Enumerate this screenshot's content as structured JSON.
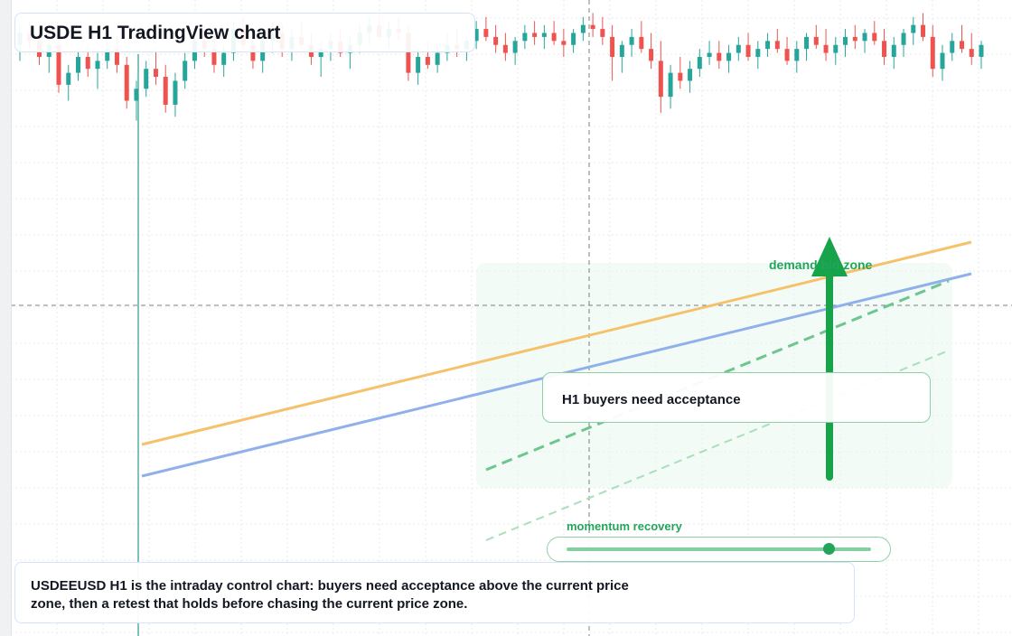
{
  "title": "USDE H1 TradingView chart",
  "chart_data": {
    "type": "candlestick",
    "timeframe": "H1",
    "grid": true,
    "crosshair": true,
    "candles_ohlc": [
      [
        100.3,
        100.8,
        99.9,
        100.6
      ],
      [
        100.6,
        100.9,
        100.2,
        100.4
      ],
      [
        100.4,
        100.7,
        99.8,
        100.0
      ],
      [
        100.0,
        100.5,
        99.6,
        100.3
      ],
      [
        100.3,
        100.6,
        99.1,
        99.3
      ],
      [
        99.3,
        99.8,
        98.9,
        99.6
      ],
      [
        99.6,
        100.2,
        99.4,
        100.0
      ],
      [
        100.0,
        100.3,
        99.5,
        99.7
      ],
      [
        99.7,
        100.1,
        99.2,
        99.9
      ],
      [
        99.9,
        100.4,
        99.7,
        100.2
      ],
      [
        100.2,
        100.5,
        99.6,
        99.8
      ],
      [
        99.8,
        100.0,
        98.7,
        98.9
      ],
      [
        98.9,
        99.4,
        98.4,
        99.2
      ],
      [
        99.2,
        99.9,
        99.0,
        99.7
      ],
      [
        99.7,
        100.2,
        99.3,
        99.5
      ],
      [
        99.5,
        99.8,
        98.6,
        98.8
      ],
      [
        98.8,
        99.6,
        98.5,
        99.4
      ],
      [
        99.4,
        100.1,
        99.2,
        99.9
      ],
      [
        99.9,
        100.6,
        99.7,
        100.4
      ],
      [
        100.4,
        100.8,
        100.0,
        100.2
      ],
      [
        100.2,
        100.5,
        99.6,
        99.8
      ],
      [
        99.8,
        100.3,
        99.5,
        100.1
      ],
      [
        100.1,
        100.9,
        99.9,
        100.7
      ],
      [
        100.7,
        101.0,
        100.2,
        100.3
      ],
      [
        100.3,
        100.6,
        99.7,
        99.9
      ],
      [
        99.9,
        100.5,
        99.6,
        100.4
      ],
      [
        100.4,
        100.9,
        100.1,
        100.6
      ],
      [
        100.6,
        100.8,
        100.0,
        100.2
      ],
      [
        100.2,
        100.7,
        99.9,
        100.5
      ],
      [
        100.5,
        100.9,
        100.2,
        100.3
      ],
      [
        100.3,
        100.6,
        99.8,
        100.0
      ],
      [
        100.0,
        100.4,
        99.5,
        100.2
      ],
      [
        100.2,
        100.6,
        99.9,
        100.4
      ],
      [
        100.4,
        100.7,
        100.0,
        100.1
      ],
      [
        100.1,
        100.5,
        99.7,
        100.3
      ],
      [
        100.3,
        100.8,
        100.1,
        100.6
      ],
      [
        100.6,
        101.0,
        100.3,
        100.8
      ],
      [
        100.8,
        101.1,
        100.4,
        100.5
      ],
      [
        100.5,
        100.9,
        100.2,
        100.7
      ],
      [
        100.7,
        101.0,
        100.4,
        100.6
      ],
      [
        100.6,
        100.8,
        99.4,
        99.6
      ],
      [
        99.6,
        100.2,
        99.3,
        100.0
      ],
      [
        100.0,
        100.4,
        99.7,
        99.8
      ],
      [
        99.8,
        100.3,
        99.6,
        100.1
      ],
      [
        100.1,
        100.6,
        99.9,
        100.3
      ],
      [
        100.3,
        100.7,
        100.0,
        100.2
      ],
      [
        100.2,
        100.5,
        99.9,
        100.4
      ],
      [
        100.4,
        100.9,
        100.2,
        100.7
      ],
      [
        100.7,
        101.0,
        100.4,
        100.5
      ],
      [
        100.5,
        100.8,
        100.1,
        100.3
      ],
      [
        100.3,
        100.6,
        99.9,
        100.1
      ],
      [
        100.1,
        100.5,
        99.8,
        100.4
      ],
      [
        100.4,
        100.8,
        100.2,
        100.6
      ],
      [
        100.6,
        100.9,
        100.3,
        100.5
      ],
      [
        100.5,
        100.8,
        100.2,
        100.6
      ],
      [
        100.6,
        100.9,
        100.3,
        100.4
      ],
      [
        100.4,
        100.7,
        100.0,
        100.3
      ],
      [
        100.3,
        100.7,
        100.1,
        100.6
      ],
      [
        100.6,
        101.0,
        100.4,
        100.8
      ],
      [
        100.8,
        101.1,
        100.5,
        100.7
      ],
      [
        100.7,
        101.0,
        100.3,
        100.5
      ],
      [
        100.5,
        100.8,
        99.4,
        100.0
      ],
      [
        100.0,
        100.4,
        99.6,
        100.3
      ],
      [
        100.3,
        100.7,
        100.0,
        100.5
      ],
      [
        100.5,
        100.9,
        100.1,
        100.2
      ],
      [
        100.2,
        100.6,
        99.7,
        99.9
      ],
      [
        99.9,
        100.4,
        98.6,
        99.0
      ],
      [
        99.0,
        99.8,
        98.7,
        99.6
      ],
      [
        99.6,
        100.0,
        99.2,
        99.4
      ],
      [
        99.4,
        99.9,
        99.1,
        99.7
      ],
      [
        99.7,
        100.2,
        99.5,
        100.0
      ],
      [
        100.0,
        100.4,
        99.8,
        100.1
      ],
      [
        100.1,
        100.4,
        99.7,
        99.9
      ],
      [
        99.9,
        100.3,
        99.6,
        100.1
      ],
      [
        100.1,
        100.5,
        99.9,
        100.3
      ],
      [
        100.3,
        100.6,
        99.9,
        100.0
      ],
      [
        100.0,
        100.4,
        99.7,
        100.2
      ],
      [
        100.2,
        100.6,
        100.0,
        100.4
      ],
      [
        100.4,
        100.7,
        100.1,
        100.2
      ],
      [
        100.2,
        100.5,
        99.8,
        99.9
      ],
      [
        99.9,
        100.4,
        99.6,
        100.2
      ],
      [
        100.2,
        100.6,
        99.9,
        100.5
      ],
      [
        100.5,
        100.8,
        100.2,
        100.3
      ],
      [
        100.3,
        100.7,
        99.9,
        100.1
      ],
      [
        100.1,
        100.5,
        99.8,
        100.3
      ],
      [
        100.3,
        100.7,
        100.0,
        100.5
      ],
      [
        100.5,
        100.8,
        100.2,
        100.4
      ],
      [
        100.4,
        100.7,
        100.1,
        100.6
      ],
      [
        100.6,
        100.9,
        100.3,
        100.4
      ],
      [
        100.4,
        100.7,
        99.8,
        100.0
      ],
      [
        100.0,
        100.5,
        99.7,
        100.3
      ],
      [
        100.3,
        100.7,
        100.0,
        100.6
      ],
      [
        100.6,
        101.0,
        100.3,
        100.8
      ],
      [
        100.8,
        101.1,
        100.4,
        100.5
      ],
      [
        100.5,
        100.8,
        99.5,
        99.7
      ],
      [
        99.7,
        100.3,
        99.4,
        100.1
      ],
      [
        100.1,
        100.6,
        99.9,
        100.4
      ],
      [
        100.4,
        100.8,
        100.1,
        100.2
      ],
      [
        100.2,
        100.6,
        99.8,
        100.0
      ],
      [
        100.0,
        100.4,
        99.7,
        100.3
      ]
    ]
  },
  "annotations": {
    "note": "H1 buyers need acceptance",
    "demand_label": "demand bid zone",
    "momentum_label": "momentum recovery",
    "momentum_level": 0.86
  },
  "caption": "USDEEUSD H1 is the intraday control chart: buyers need acceptance above the current price zone, then a retest that holds before chasing the current price zone.",
  "colors": {
    "up": "#26a69a",
    "down": "#ef5350",
    "accent_green": "#22a55a",
    "orange_line": "#f5c26b",
    "blue_line": "#8fb0ea",
    "grid": "#e7e9ee"
  }
}
